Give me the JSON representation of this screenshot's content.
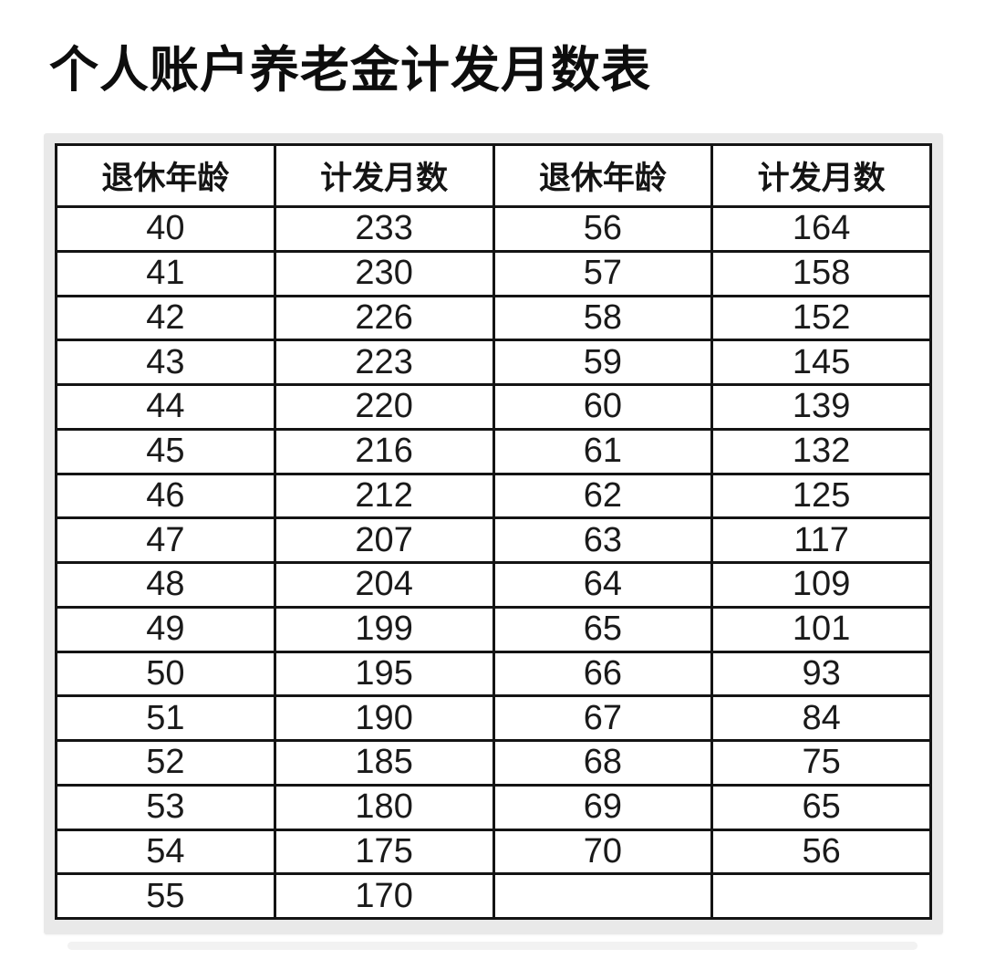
{
  "title": "个人账户养老金计发月数表",
  "colors": {
    "page_bg": "#ffffff",
    "card_bg": "#e9e9e9",
    "table_bg": "#ffffff",
    "border": "#141414",
    "text": "#0d0d0d"
  },
  "chart_data": {
    "type": "table",
    "title": "个人账户养老金计发月数表",
    "columns": [
      "退休年龄",
      "计发月数",
      "退休年龄",
      "计发月数"
    ],
    "rows": [
      [
        "40",
        "233",
        "56",
        "164"
      ],
      [
        "41",
        "230",
        "57",
        "158"
      ],
      [
        "42",
        "226",
        "58",
        "152"
      ],
      [
        "43",
        "223",
        "59",
        "145"
      ],
      [
        "44",
        "220",
        "60",
        "139"
      ],
      [
        "45",
        "216",
        "61",
        "132"
      ],
      [
        "46",
        "212",
        "62",
        "125"
      ],
      [
        "47",
        "207",
        "63",
        "117"
      ],
      [
        "48",
        "204",
        "64",
        "109"
      ],
      [
        "49",
        "199",
        "65",
        "101"
      ],
      [
        "50",
        "195",
        "66",
        "93"
      ],
      [
        "51",
        "190",
        "67",
        "84"
      ],
      [
        "52",
        "185",
        "68",
        "75"
      ],
      [
        "53",
        "180",
        "69",
        "65"
      ],
      [
        "54",
        "175",
        "70",
        "56"
      ],
      [
        "55",
        "170",
        "",
        ""
      ]
    ]
  }
}
